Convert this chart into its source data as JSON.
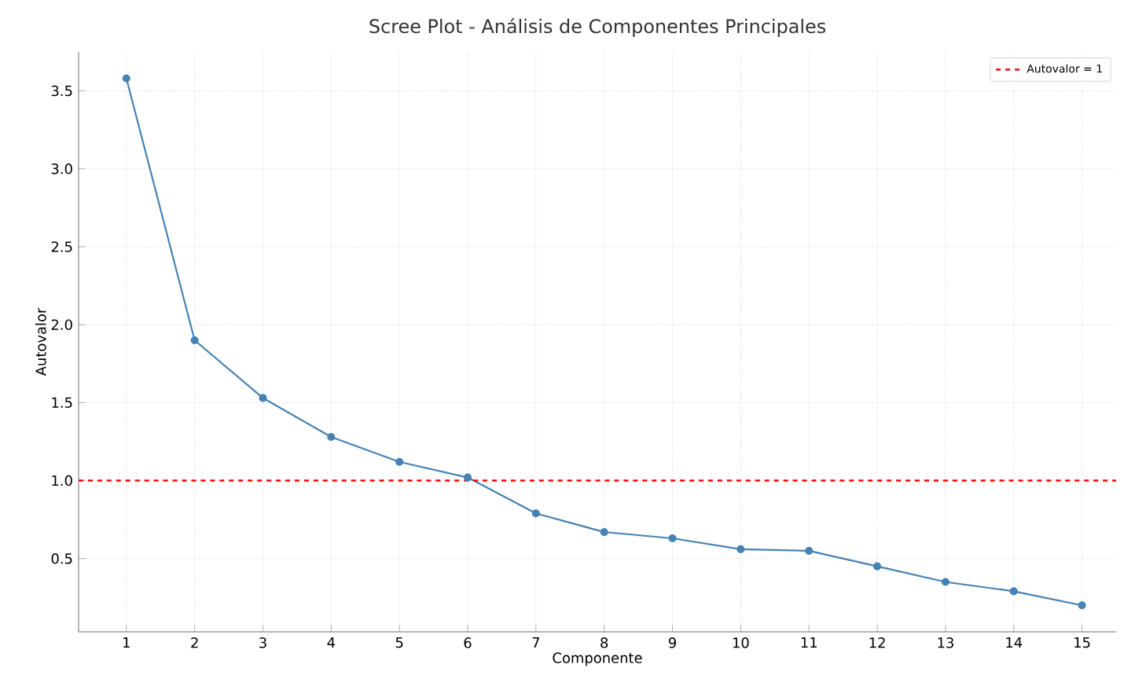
{
  "chart_data": {
    "type": "line",
    "title": "Scree Plot - Análisis de Componentes Principales",
    "xlabel": "Componente",
    "ylabel": "Autovalor",
    "x": [
      1,
      2,
      3,
      4,
      5,
      6,
      7,
      8,
      9,
      10,
      11,
      12,
      13,
      14,
      15
    ],
    "series": [
      {
        "color": "#4682b4",
        "values": [
          3.58,
          1.9,
          1.53,
          1.28,
          1.12,
          1.02,
          0.79,
          0.67,
          0.63,
          0.56,
          0.55,
          0.45,
          0.35,
          0.29,
          0.2
        ]
      }
    ],
    "xlim": [
      0.3,
      15.5
    ],
    "ylim": [
      0.03,
      3.75
    ],
    "xticks": [
      1,
      2,
      3,
      4,
      5,
      6,
      7,
      8,
      9,
      10,
      11,
      12,
      13,
      14,
      15
    ],
    "yticks": [
      0.5,
      {
        "value": 1.0,
        "label": "1.0"
      },
      1.5,
      {
        "value": 2.0,
        "label": "2.0"
      },
      2.5,
      {
        "value": 3.0,
        "label": "3.0"
      },
      3.5
    ],
    "ref_lines": [
      {
        "axis": "y",
        "value": 1.0,
        "label": "Autovalor = 1",
        "color": "#ff0000",
        "line_style": "dashed"
      }
    ],
    "grid": true,
    "legend": "top right",
    "marker": "circle",
    "line_style": "solid"
  }
}
